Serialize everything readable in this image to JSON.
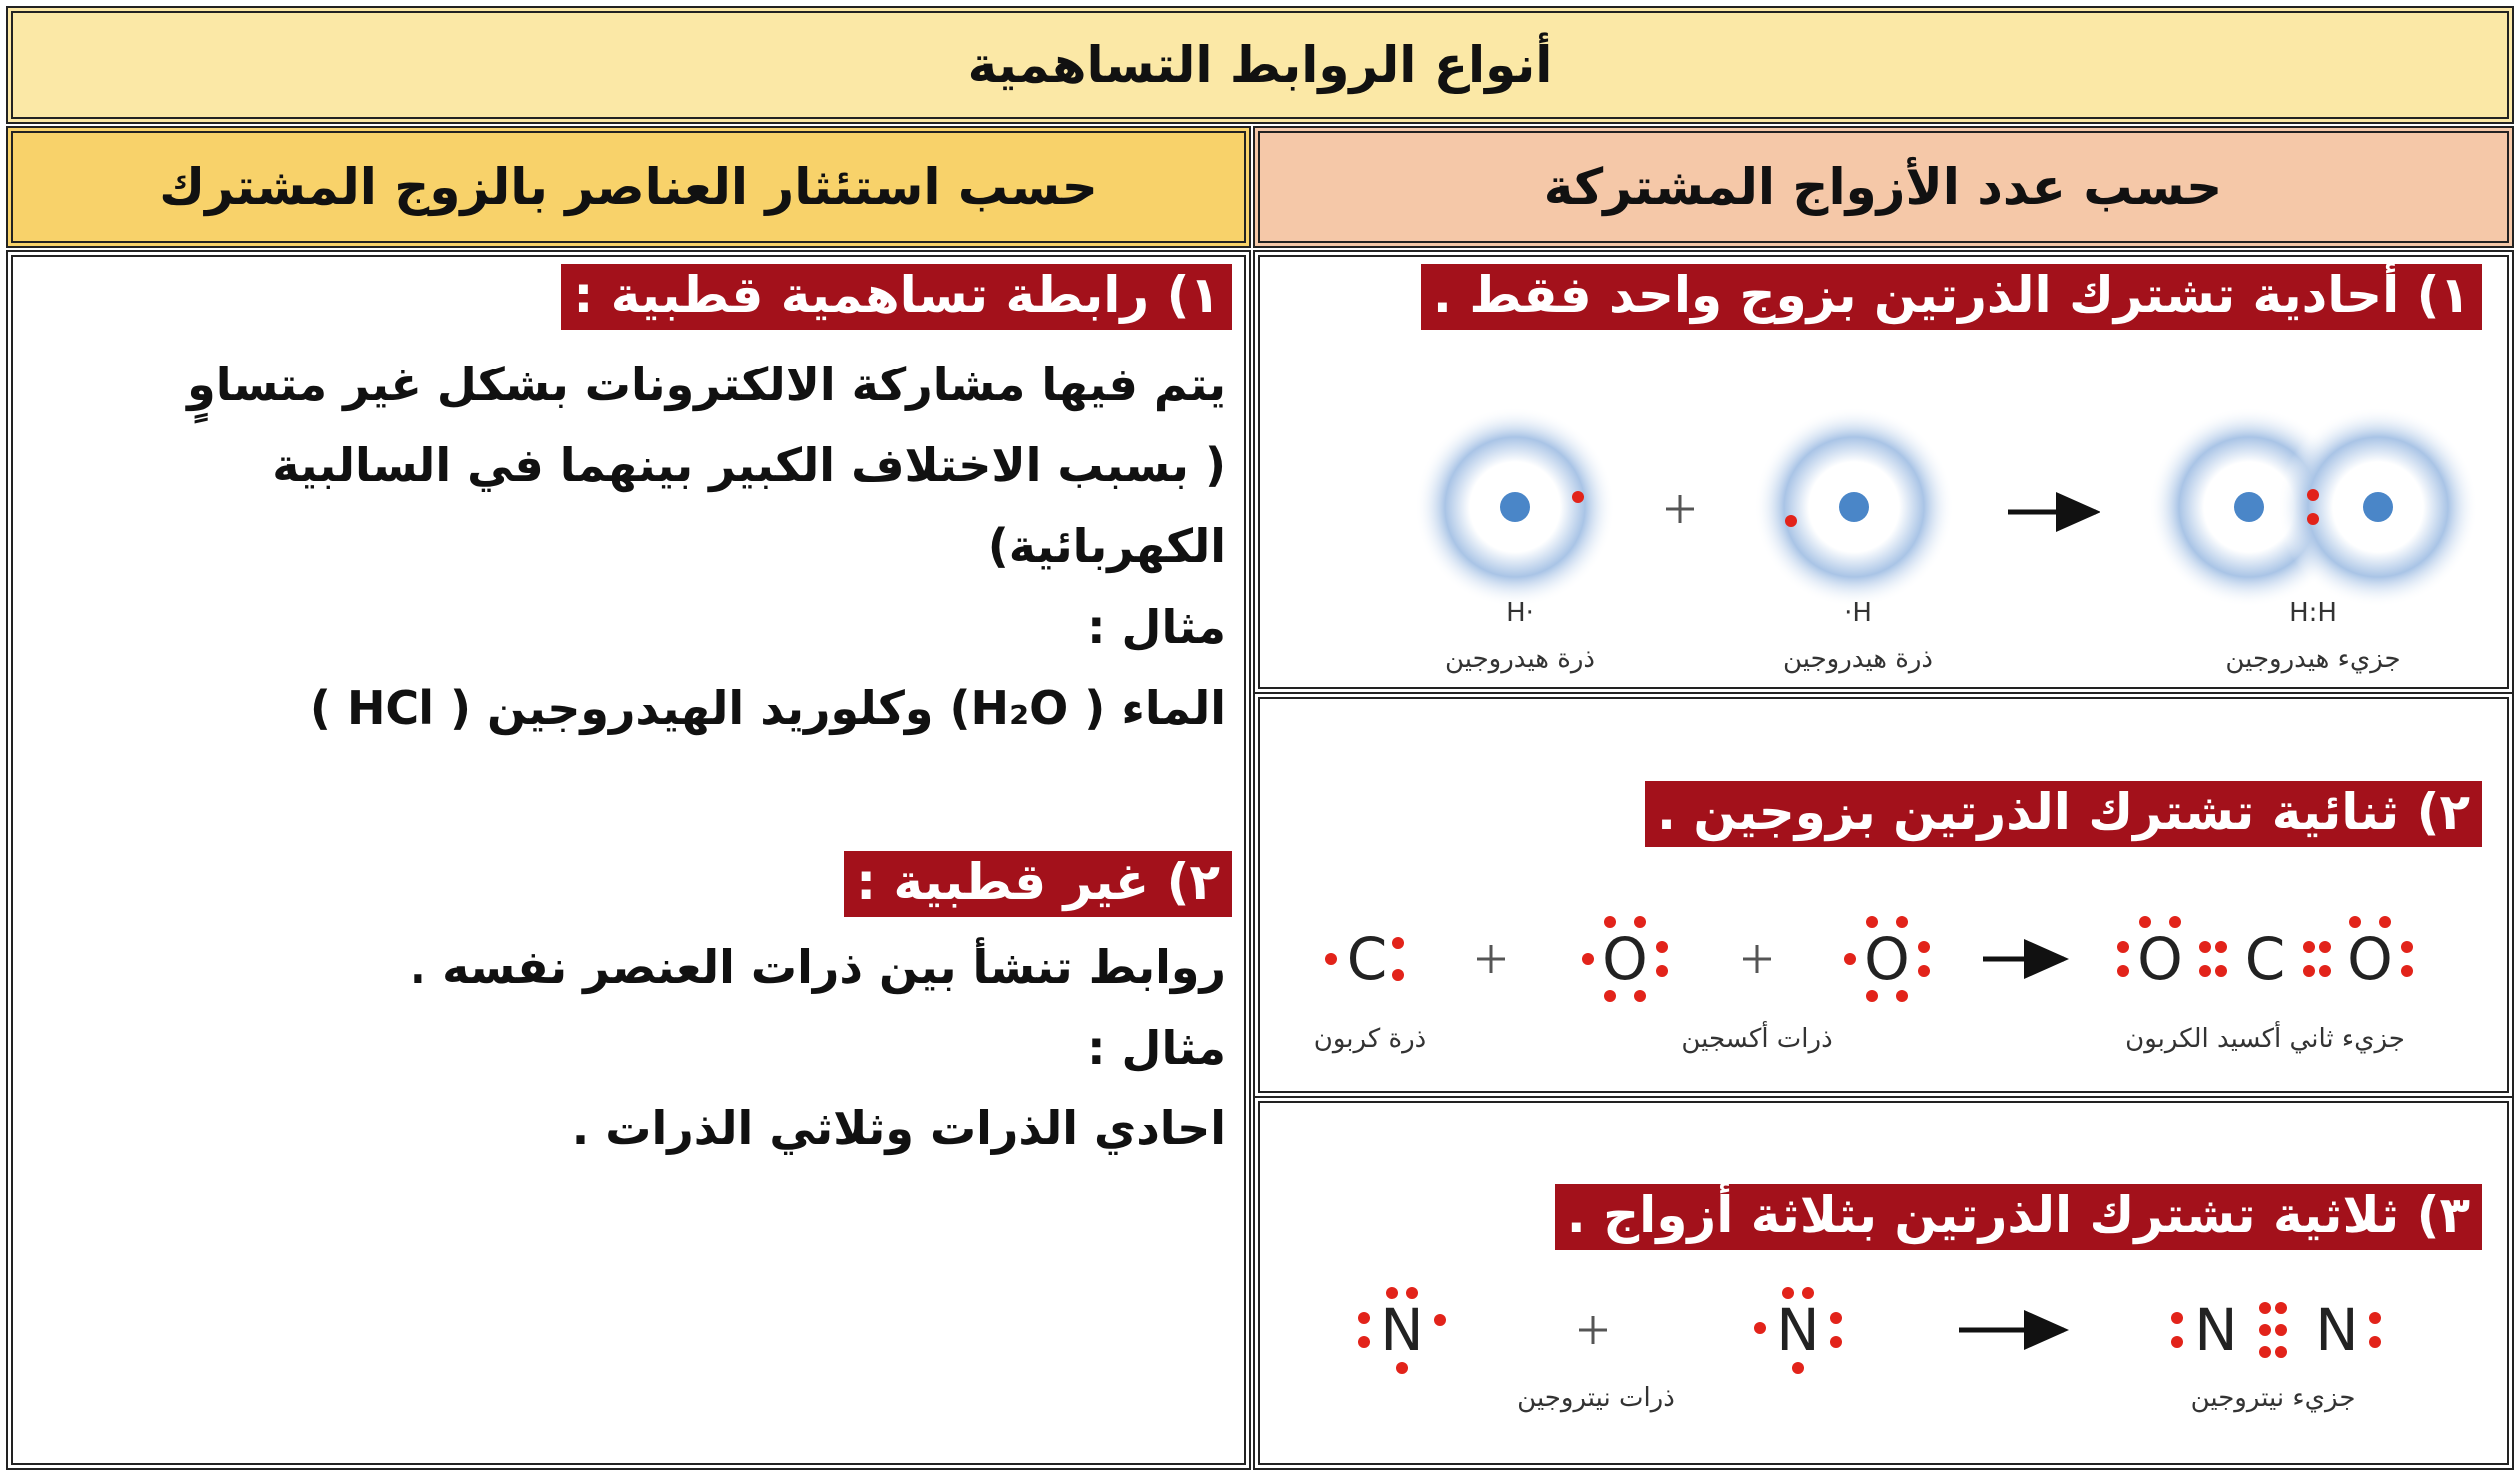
{
  "title": "أنواع الروابط التساهمية",
  "by_pairs": {
    "header": "حسب عدد الأزواج المشتركة",
    "sections": [
      {
        "heading": "١) أحادية تشترك الذرتين بزوج واحد فقط .",
        "formulas": [
          "H·",
          "·H",
          "H:H"
        ],
        "captions": [
          "ذرة هيدروجين",
          "ذرة هيدروجين",
          "جزيء هيدروجين"
        ]
      },
      {
        "heading": "٢) ثنائية تشترك الذرتين بزوجين .",
        "symbols": [
          "C",
          "O",
          "O",
          "O",
          "C",
          "O"
        ],
        "captions": [
          "ذرة كربون",
          "ذرات أكسجين",
          "جزيء ثاني أكسيد الكربون"
        ]
      },
      {
        "heading": "٣) ثلاثية تشترك الذرتين بثلاثة أزواج .",
        "symbols": [
          "N",
          "N",
          "N",
          "N"
        ],
        "captions": [
          "ذرات نيتروجين",
          "جزيء نيتروجين"
        ]
      }
    ]
  },
  "by_electronegativity": {
    "header": "حسب استئثار العناصر بالزوج المشترك",
    "polar": {
      "heading": "١) رابطة تساهمية قطبية :",
      "lines": [
        "يتم فيها مشاركة الالكترونات بشكل غير متساوٍ",
        "( بسبب الاختلاف الكبير بينهما في السالبية",
        "الكهربائية)",
        "مثال :",
        "الماء ( H₂O) وكلوريد الهيدروجين ( HCl )"
      ]
    },
    "nonpolar": {
      "heading": "٢) غير قطبية :",
      "lines": [
        "روابط تنشأ بين ذرات العنصر نفسه .",
        "مثال :",
        "احادي الذرات وثلاثي الذرات ."
      ]
    }
  }
}
